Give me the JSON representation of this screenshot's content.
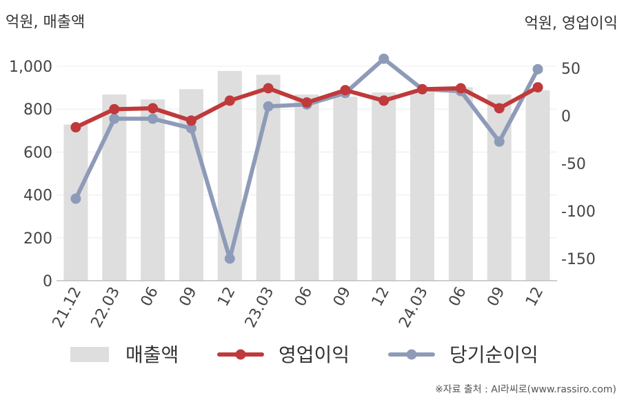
{
  "chart_data": {
    "type": "bar",
    "unit_left": "억원, 매출액",
    "unit_right": "억원, 영업이익",
    "categories": [
      "21.12",
      "22.03",
      "06",
      "09",
      "12",
      "23.03",
      "06",
      "09",
      "12",
      "24.03",
      "06",
      "09",
      "12"
    ],
    "ylim_left": [
      0,
      1000
    ],
    "yticks_left": [
      "0",
      "200",
      "400",
      "600",
      "800",
      "1,000"
    ],
    "ylim_right": [
      -175,
      50
    ],
    "yticks_right": [
      "-150",
      "-100",
      "-50",
      "0",
      "50"
    ],
    "grid": true,
    "legend_placement": "bottom",
    "series": [
      {
        "name": "매출액",
        "type": "bar",
        "axis": "left",
        "color": "#dedede",
        "values": [
          728,
          868,
          845,
          893,
          978,
          960,
          868,
          858,
          878,
          880,
          902,
          868,
          888
        ]
      },
      {
        "name": "영업이익",
        "type": "line",
        "axis": "right",
        "color": "#c0393b",
        "values": [
          -12,
          7,
          8,
          -5,
          16,
          29,
          14,
          27,
          16,
          28,
          29,
          8,
          30
        ]
      },
      {
        "name": "당기순이익",
        "type": "line",
        "axis": "right",
        "color": "#8e9bb8",
        "values": [
          -87,
          -3,
          -3,
          -13,
          -150,
          10,
          12,
          24,
          60,
          28,
          26,
          -27,
          49
        ]
      }
    ]
  },
  "source": "※자료 출처 : AI라씨로(www.rassiro.com)"
}
